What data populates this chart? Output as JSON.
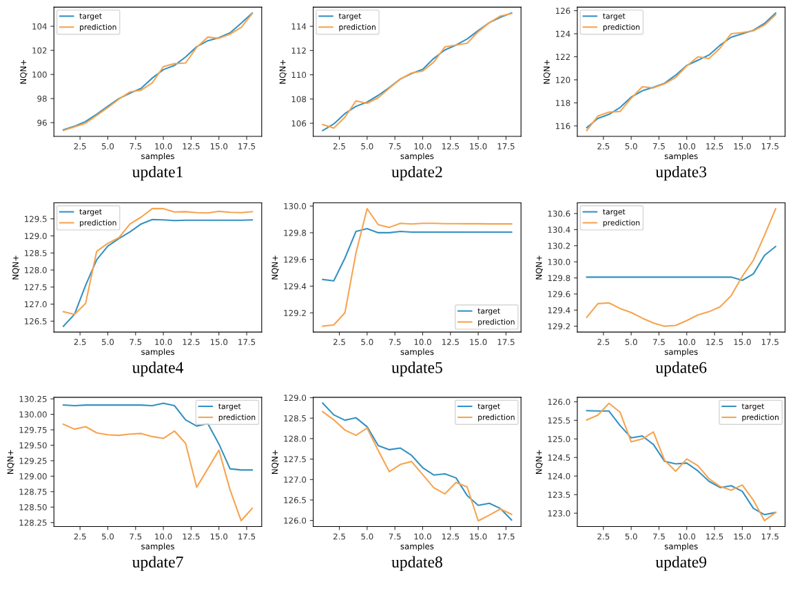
{
  "chart_data": [
    {
      "type": "line",
      "title": "update1",
      "xlabel": "samples",
      "ylabel": "NQN+",
      "legend": "top left",
      "grid": false,
      "x": [
        1,
        2,
        3,
        4,
        5,
        6,
        7,
        8,
        9,
        10,
        11,
        12,
        13,
        14,
        15,
        16,
        17,
        18
      ],
      "xlim": [
        0.15,
        18.85
      ],
      "xticks": [
        {
          "value": 2.5,
          "label": "2.5"
        },
        {
          "value": 5,
          "label": "5.0"
        },
        {
          "value": 7.5,
          "label": "7.5"
        },
        {
          "value": 10,
          "label": "10.0"
        },
        {
          "value": 12.5,
          "label": "12.5"
        },
        {
          "value": 15,
          "label": "15.0"
        },
        {
          "value": 17.5,
          "label": "17.5"
        }
      ],
      "ylim": [
        94.86,
        105.59
      ],
      "yticks": [
        96,
        98,
        100,
        102,
        104
      ],
      "series": [
        {
          "name": "target",
          "color": "#3391c1",
          "values": [
            95.4,
            95.7,
            96.1,
            96.7,
            97.35,
            98.0,
            98.45,
            98.85,
            99.7,
            100.4,
            100.75,
            101.45,
            102.3,
            102.8,
            103.05,
            103.45,
            104.25,
            105.1
          ]
        },
        {
          "name": "prediction",
          "color": "#f7a34e",
          "values": [
            95.35,
            95.65,
            95.95,
            96.6,
            97.25,
            97.95,
            98.55,
            98.7,
            99.3,
            100.65,
            100.9,
            100.95,
            102.25,
            103.1,
            103.0,
            103.35,
            103.9,
            105.05
          ]
        }
      ]
    },
    {
      "type": "line",
      "title": "update2",
      "xlabel": "samples",
      "ylabel": "NQN+",
      "legend": "top left",
      "grid": false,
      "x": [
        1,
        2,
        3,
        4,
        5,
        6,
        7,
        8,
        9,
        10,
        11,
        12,
        13,
        14,
        15,
        16,
        17,
        18
      ],
      "xlim": [
        0.15,
        18.85
      ],
      "xticks": [
        {
          "value": 2.5,
          "label": "2.5"
        },
        {
          "value": 5,
          "label": "5.0"
        },
        {
          "value": 7.5,
          "label": "7.5"
        },
        {
          "value": 10,
          "label": "10.0"
        },
        {
          "value": 12.5,
          "label": "12.5"
        },
        {
          "value": 15,
          "label": "15.0"
        },
        {
          "value": 17.5,
          "label": "17.5"
        }
      ],
      "ylim": [
        104.92,
        115.58
      ],
      "yticks": [
        106,
        108,
        110,
        112,
        114
      ],
      "series": [
        {
          "name": "target",
          "color": "#3391c1",
          "values": [
            105.4,
            105.95,
            106.8,
            107.4,
            107.75,
            108.3,
            108.95,
            109.66,
            110.1,
            110.45,
            111.35,
            112.05,
            112.45,
            112.95,
            113.65,
            114.3,
            114.75,
            115.1
          ]
        },
        {
          "name": "prediction",
          "color": "#f7a34e",
          "values": [
            105.9,
            105.6,
            106.5,
            107.85,
            107.65,
            108.1,
            108.9,
            109.65,
            110.15,
            110.3,
            111.05,
            112.3,
            112.45,
            112.6,
            113.55,
            114.3,
            114.85,
            115.05
          ]
        }
      ]
    },
    {
      "type": "line",
      "title": "update3",
      "xlabel": "samples",
      "ylabel": "NQN+",
      "legend": "top left",
      "grid": false,
      "x": [
        1,
        2,
        3,
        4,
        5,
        6,
        7,
        8,
        9,
        10,
        11,
        12,
        13,
        14,
        15,
        16,
        17,
        18
      ],
      "xlim": [
        0.15,
        18.85
      ],
      "xticks": [
        {
          "value": 2.5,
          "label": "2.5"
        },
        {
          "value": 5,
          "label": "5.0"
        },
        {
          "value": 7.5,
          "label": "7.5"
        },
        {
          "value": 10,
          "label": "10.0"
        },
        {
          "value": 12.5,
          "label": "12.5"
        },
        {
          "value": 15,
          "label": "15.0"
        },
        {
          "value": 17.5,
          "label": "17.5"
        }
      ],
      "ylim": [
        115.09,
        126.31
      ],
      "yticks": [
        116,
        118,
        120,
        122,
        124,
        126
      ],
      "series": [
        {
          "name": "target",
          "color": "#3391c1",
          "values": [
            115.85,
            116.65,
            117.0,
            117.6,
            118.5,
            119.05,
            119.35,
            119.7,
            120.4,
            121.25,
            121.7,
            122.15,
            123.0,
            123.7,
            124.0,
            124.3,
            124.9,
            125.8
          ]
        },
        {
          "name": "prediction",
          "color": "#f7a34e",
          "values": [
            115.6,
            116.85,
            117.2,
            117.25,
            118.4,
            119.4,
            119.3,
            119.65,
            120.2,
            121.2,
            122.0,
            121.85,
            122.75,
            124.0,
            124.1,
            124.25,
            124.75,
            125.65
          ]
        }
      ]
    },
    {
      "type": "line",
      "title": "update4",
      "xlabel": "samples",
      "ylabel": "NQN+",
      "legend": "top left",
      "grid": false,
      "x": [
        1,
        2,
        3,
        4,
        5,
        6,
        7,
        8,
        9,
        10,
        11,
        12,
        13,
        14,
        15,
        16,
        17,
        18
      ],
      "xlim": [
        0.15,
        18.85
      ],
      "xticks": [
        {
          "value": 2.5,
          "label": "2.5"
        },
        {
          "value": 5,
          "label": "5.0"
        },
        {
          "value": 7.5,
          "label": "7.5"
        },
        {
          "value": 10,
          "label": "10.0"
        },
        {
          "value": 12.5,
          "label": "12.5"
        },
        {
          "value": 15,
          "label": "15.0"
        },
        {
          "value": 17.5,
          "label": "17.5"
        }
      ],
      "ylim": [
        126.18,
        129.97
      ],
      "yticks": [
        {
          "value": 126.5,
          "label": "126.5"
        },
        {
          "value": 127,
          "label": "127.0"
        },
        {
          "value": 127.5,
          "label": "127.5"
        },
        {
          "value": 128,
          "label": "128.0"
        },
        {
          "value": 128.5,
          "label": "128.5"
        },
        {
          "value": 129,
          "label": "129.0"
        },
        {
          "value": 129.5,
          "label": "129.5"
        }
      ],
      "series": [
        {
          "name": "target",
          "color": "#3391c1",
          "values": [
            126.35,
            126.7,
            127.55,
            128.3,
            128.7,
            128.92,
            129.12,
            129.35,
            129.48,
            129.47,
            129.45,
            129.46,
            129.46,
            129.46,
            129.46,
            129.46,
            129.46,
            129.47
          ]
        },
        {
          "name": "prediction",
          "color": "#f7a34e",
          "values": [
            126.78,
            126.7,
            127.02,
            128.55,
            128.78,
            128.95,
            129.35,
            129.55,
            129.8,
            129.8,
            129.7,
            129.71,
            129.68,
            129.67,
            129.72,
            129.69,
            129.68,
            129.71
          ]
        }
      ]
    },
    {
      "type": "line",
      "title": "update5",
      "xlabel": "samples",
      "ylabel": "NQN+",
      "legend": "bottom right",
      "grid": false,
      "x": [
        1,
        2,
        3,
        4,
        5,
        6,
        7,
        8,
        9,
        10,
        11,
        12,
        13,
        14,
        15,
        16,
        17,
        18
      ],
      "xlim": [
        0.15,
        18.85
      ],
      "xticks": [
        {
          "value": 2.5,
          "label": "2.5"
        },
        {
          "value": 5,
          "label": "5.0"
        },
        {
          "value": 7.5,
          "label": "7.5"
        },
        {
          "value": 10,
          "label": "10.0"
        },
        {
          "value": 12.5,
          "label": "12.5"
        },
        {
          "value": 15,
          "label": "15.0"
        },
        {
          "value": 17.5,
          "label": "17.5"
        }
      ],
      "ylim": [
        129.056,
        130.024
      ],
      "yticks": [
        {
          "value": 129.2,
          "label": "129.2"
        },
        {
          "value": 129.4,
          "label": "129.4"
        },
        {
          "value": 129.6,
          "label": "129.6"
        },
        {
          "value": 129.8,
          "label": "129.8"
        },
        {
          "value": 130,
          "label": "130.0"
        }
      ],
      "series": [
        {
          "name": "target",
          "color": "#3391c1",
          "values": [
            129.45,
            129.44,
            129.61,
            129.81,
            129.83,
            129.8,
            129.8,
            129.81,
            129.805,
            129.805,
            129.805,
            129.805,
            129.805,
            129.805,
            129.805,
            129.805,
            129.805,
            129.805
          ]
        },
        {
          "name": "prediction",
          "color": "#f7a34e",
          "values": [
            129.1,
            129.11,
            129.2,
            129.65,
            129.98,
            129.86,
            129.84,
            129.87,
            129.865,
            129.87,
            129.87,
            129.868,
            129.868,
            129.867,
            129.867,
            129.866,
            129.866,
            129.866
          ]
        }
      ]
    },
    {
      "type": "line",
      "title": "update6",
      "xlabel": "samples",
      "ylabel": "NQN+",
      "legend": "top left",
      "grid": false,
      "x": [
        1,
        2,
        3,
        4,
        5,
        6,
        7,
        8,
        9,
        10,
        11,
        12,
        13,
        14,
        15,
        16,
        17,
        18
      ],
      "xlim": [
        0.15,
        18.85
      ],
      "xticks": [
        {
          "value": 2.5,
          "label": "2.5"
        },
        {
          "value": 5,
          "label": "5.0"
        },
        {
          "value": 7.5,
          "label": "7.5"
        },
        {
          "value": 10,
          "label": "10.0"
        },
        {
          "value": 12.5,
          "label": "12.5"
        },
        {
          "value": 15,
          "label": "15.0"
        },
        {
          "value": 17.5,
          "label": "17.5"
        }
      ],
      "ylim": [
        129.127,
        130.733
      ],
      "yticks": [
        {
          "value": 129.2,
          "label": "129.2"
        },
        {
          "value": 129.4,
          "label": "129.4"
        },
        {
          "value": 129.6,
          "label": "129.6"
        },
        {
          "value": 129.8,
          "label": "129.8"
        },
        {
          "value": 130,
          "label": "130.0"
        },
        {
          "value": 130.2,
          "label": "130.2"
        },
        {
          "value": 130.4,
          "label": "130.4"
        },
        {
          "value": 130.6,
          "label": "130.6"
        }
      ],
      "series": [
        {
          "name": "target",
          "color": "#3391c1",
          "values": [
            129.81,
            129.81,
            129.81,
            129.81,
            129.81,
            129.81,
            129.81,
            129.81,
            129.81,
            129.81,
            129.81,
            129.81,
            129.81,
            129.81,
            129.77,
            129.85,
            130.08,
            130.19
          ]
        },
        {
          "name": "prediction",
          "color": "#f7a34e",
          "values": [
            129.31,
            129.48,
            129.49,
            129.42,
            129.37,
            129.3,
            129.24,
            129.2,
            129.21,
            129.27,
            129.34,
            129.38,
            129.44,
            129.58,
            129.82,
            130.02,
            130.33,
            130.66
          ]
        }
      ]
    },
    {
      "type": "line",
      "title": "update7",
      "xlabel": "samples",
      "ylabel": "NQN+",
      "legend": "top right",
      "grid": false,
      "x": [
        1,
        2,
        3,
        4,
        5,
        6,
        7,
        8,
        9,
        10,
        11,
        12,
        13,
        14,
        15,
        16,
        17,
        18
      ],
      "xlim": [
        0.15,
        18.85
      ],
      "xticks": [
        {
          "value": 2.5,
          "label": "2.5"
        },
        {
          "value": 5,
          "label": "5.0"
        },
        {
          "value": 7.5,
          "label": "7.5"
        },
        {
          "value": 10,
          "label": "10.0"
        },
        {
          "value": 12.5,
          "label": "12.5"
        },
        {
          "value": 15,
          "label": "15.0"
        },
        {
          "value": 17.5,
          "label": "17.5"
        }
      ],
      "ylim": [
        128.185,
        130.275
      ],
      "yticks": [
        {
          "value": 128.25,
          "label": "128.25"
        },
        {
          "value": 128.5,
          "label": "128.50"
        },
        {
          "value": 128.75,
          "label": "128.75"
        },
        {
          "value": 129,
          "label": "129.00"
        },
        {
          "value": 129.25,
          "label": "129.25"
        },
        {
          "value": 129.5,
          "label": "129.50"
        },
        {
          "value": 129.75,
          "label": "129.75"
        },
        {
          "value": 130,
          "label": "130.00"
        },
        {
          "value": 130.25,
          "label": "130.25"
        }
      ],
      "series": [
        {
          "name": "target",
          "color": "#3391c1",
          "values": [
            130.15,
            130.14,
            130.15,
            130.15,
            130.15,
            130.15,
            130.15,
            130.15,
            130.14,
            130.18,
            130.14,
            129.91,
            129.81,
            129.85,
            129.52,
            129.12,
            129.1,
            129.1
          ]
        },
        {
          "name": "prediction",
          "color": "#f7a34e",
          "values": [
            129.84,
            129.76,
            129.8,
            129.7,
            129.67,
            129.66,
            129.68,
            129.69,
            129.64,
            129.61,
            129.73,
            129.53,
            128.82,
            129.12,
            129.42,
            128.78,
            128.28,
            128.48
          ]
        }
      ]
    },
    {
      "type": "line",
      "title": "update8",
      "xlabel": "samples",
      "ylabel": "NQN+",
      "legend": "top right",
      "grid": false,
      "x": [
        1,
        2,
        3,
        4,
        5,
        6,
        7,
        8,
        9,
        10,
        11,
        12,
        13,
        14,
        15,
        16,
        17,
        18
      ],
      "xlim": [
        0.15,
        18.85
      ],
      "xticks": [
        {
          "value": 2.5,
          "label": "2.5"
        },
        {
          "value": 5,
          "label": "5.0"
        },
        {
          "value": 7.5,
          "label": "7.5"
        },
        {
          "value": 10,
          "label": "10.0"
        },
        {
          "value": 12.5,
          "label": "12.5"
        },
        {
          "value": 15,
          "label": "15.0"
        },
        {
          "value": 17.5,
          "label": "17.5"
        }
      ],
      "ylim": [
        125.85,
        129.01
      ],
      "yticks": [
        {
          "value": 126,
          "label": "126.0"
        },
        {
          "value": 126.5,
          "label": "126.5"
        },
        {
          "value": 127,
          "label": "127.0"
        },
        {
          "value": 127.5,
          "label": "127.5"
        },
        {
          "value": 128,
          "label": "128.0"
        },
        {
          "value": 128.5,
          "label": "128.5"
        },
        {
          "value": 129,
          "label": "129.0"
        }
      ],
      "series": [
        {
          "name": "target",
          "color": "#3391c1",
          "values": [
            128.87,
            128.58,
            128.45,
            128.51,
            128.29,
            127.83,
            127.73,
            127.77,
            127.59,
            127.29,
            127.11,
            127.14,
            127.04,
            126.61,
            126.37,
            126.42,
            126.29,
            126.01
          ]
        },
        {
          "name": "prediction",
          "color": "#f7a34e",
          "values": [
            128.66,
            128.46,
            128.21,
            128.08,
            128.26,
            127.71,
            127.19,
            127.37,
            127.44,
            127.12,
            126.8,
            126.65,
            126.93,
            126.82,
            125.99,
            126.13,
            126.28,
            126.15
          ]
        }
      ]
    },
    {
      "type": "line",
      "title": "update9",
      "xlabel": "samples",
      "ylabel": "NQN+",
      "legend": "top right",
      "grid": false,
      "x": [
        1,
        2,
        3,
        4,
        5,
        6,
        7,
        8,
        9,
        10,
        11,
        12,
        13,
        14,
        15,
        16,
        17,
        18
      ],
      "xlim": [
        0.15,
        18.85
      ],
      "xticks": [
        {
          "value": 2.5,
          "label": "2.5"
        },
        {
          "value": 5,
          "label": "5.0"
        },
        {
          "value": 7.5,
          "label": "7.5"
        },
        {
          "value": 10,
          "label": "10.0"
        },
        {
          "value": 12.5,
          "label": "12.5"
        },
        {
          "value": 15,
          "label": "15.0"
        },
        {
          "value": 17.5,
          "label": "17.5"
        }
      ],
      "ylim": [
        122.64,
        126.12
      ],
      "yticks": [
        {
          "value": 123,
          "label": "123.0"
        },
        {
          "value": 123.5,
          "label": "123.5"
        },
        {
          "value": 124,
          "label": "124.0"
        },
        {
          "value": 124.5,
          "label": "124.5"
        },
        {
          "value": 125,
          "label": "125.0"
        },
        {
          "value": 125.5,
          "label": "125.5"
        },
        {
          "value": 126,
          "label": "126.0"
        }
      ],
      "series": [
        {
          "name": "target",
          "color": "#3391c1",
          "values": [
            125.76,
            125.75,
            125.75,
            125.36,
            125.03,
            125.08,
            124.85,
            124.4,
            124.33,
            124.35,
            124.14,
            123.86,
            123.69,
            123.74,
            123.59,
            123.13,
            122.96,
            123.02
          ]
        },
        {
          "name": "prediction",
          "color": "#f7a34e",
          "values": [
            125.51,
            125.64,
            125.96,
            125.72,
            124.92,
            125.0,
            125.19,
            124.43,
            124.13,
            124.46,
            124.28,
            123.93,
            123.72,
            123.62,
            123.76,
            123.35,
            122.8,
            123.02
          ]
        }
      ]
    }
  ]
}
